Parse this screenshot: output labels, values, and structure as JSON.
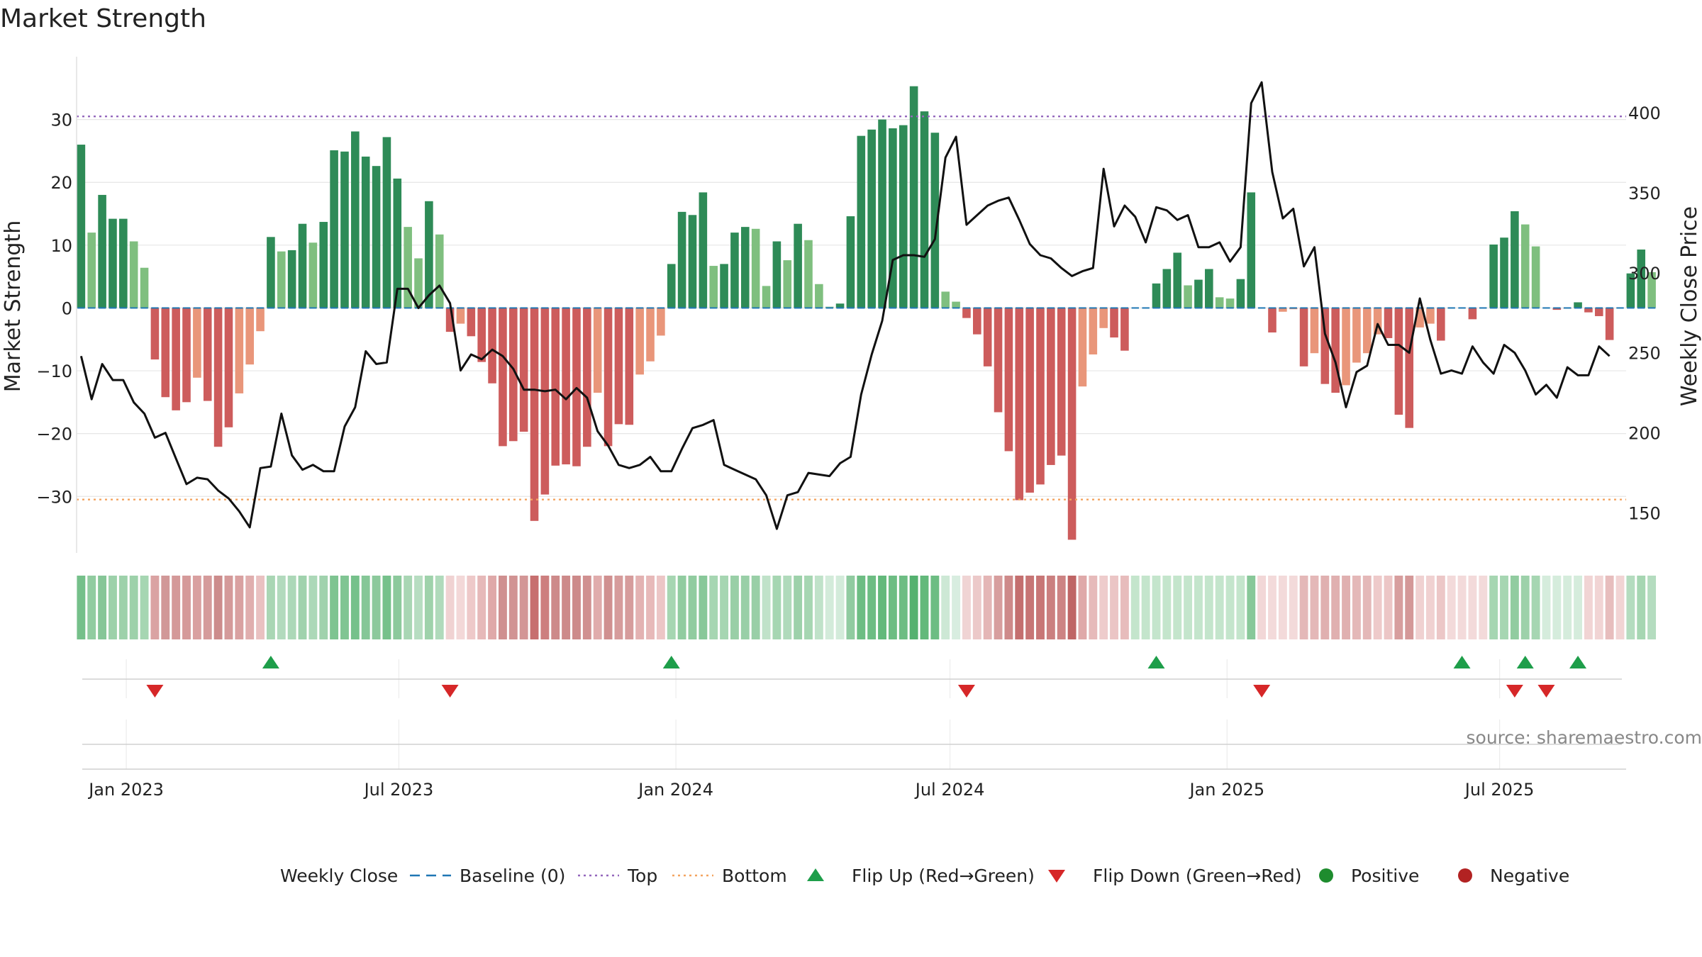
{
  "chart_data": {
    "type": "bar",
    "title": "Market Strength",
    "ylabel_left": "Market Strength",
    "ylabel_right": "Weekly Close Price",
    "ylim_left": [
      -39,
      40
    ],
    "ylim_right": [
      125,
      435
    ],
    "yticks_left": [
      30,
      20,
      10,
      0,
      -10,
      -20,
      -30
    ],
    "yticks_left_labels": [
      "30",
      "20",
      "10",
      "0",
      "−10",
      "−20",
      "−30"
    ],
    "yticks_right": [
      400,
      350,
      300,
      250,
      200,
      150
    ],
    "yticks_right_labels": [
      "400",
      "350",
      "300",
      "250",
      "200",
      "150"
    ],
    "x_start": "2022-12-02",
    "x_step_days": 7,
    "x_range": [
      "2022-11-29",
      "2025-09-23"
    ],
    "xticks": [
      {
        "date": "2023-01-01",
        "label": "Jan 2023"
      },
      {
        "date": "2023-07-01",
        "label": "Jul 2023"
      },
      {
        "date": "2024-01-01",
        "label": "Jan 2024"
      },
      {
        "date": "2024-07-01",
        "label": "Jul 2024"
      },
      {
        "date": "2025-01-01",
        "label": "Jan 2025"
      },
      {
        "date": "2025-07-01",
        "label": "Jul 2025"
      }
    ],
    "top_level": 30.5,
    "bottom_level": -30.5,
    "strength": [
      26,
      12,
      18,
      14.2,
      14.2,
      10.6,
      6.4,
      -8.2,
      -14.2,
      -16.3,
      -15,
      -11.1,
      -14.8,
      -22.1,
      -19,
      -13.6,
      -9,
      -3.7,
      11.3,
      9,
      9.2,
      13.4,
      10.4,
      13.7,
      25.1,
      24.9,
      28.1,
      24.1,
      22.6,
      27.2,
      20.6,
      12.9,
      7.9,
      17,
      11.7,
      -3.8,
      -2.5,
      -4.5,
      -8.6,
      -12,
      -22,
      -21.2,
      -19.7,
      -33.9,
      -29.7,
      -25.1,
      -24.9,
      -25.2,
      -22.1,
      -13.5,
      -22,
      -18.5,
      -18.6,
      -10.6,
      -8.5,
      -4.4,
      7,
      15.3,
      14.8,
      18.4,
      6.7,
      7,
      12,
      12.9,
      12.6,
      3.5,
      10.6,
      7.6,
      13.4,
      10.8,
      3.8,
      0.2,
      0.7,
      14.6,
      27.4,
      28.4,
      30,
      28.6,
      29.1,
      35.3,
      31.3,
      27.9,
      2.6,
      1,
      -1.6,
      -4.2,
      -9.3,
      -16.6,
      -22.8,
      -30.6,
      -29.4,
      -28.1,
      -25,
      -23.5,
      -36.9,
      -12.5,
      -7.4,
      -3.2,
      -4.7,
      -6.8,
      0,
      0,
      3.9,
      6.2,
      8.8,
      3.6,
      4.5,
      6.2,
      1.7,
      1.5,
      4.6,
      18.4,
      0,
      -3.9,
      -0.6,
      -0.2,
      -9.3,
      -7.2,
      -12.1,
      -13.5,
      -12.3,
      -8.7,
      -7.2,
      -4.2,
      -4.8,
      -17,
      -19.1,
      -3.1,
      -2.5,
      -5.2,
      0,
      0,
      -1.8,
      0,
      10.1,
      11.2,
      15.4,
      13.3,
      9.8,
      0,
      -0.3,
      -0.1,
      0.9,
      -0.7,
      -1.3,
      -5.1,
      0,
      5.5,
      9.3,
      5.7
    ],
    "close": [
      248,
      221,
      243,
      233,
      233,
      219,
      212,
      197,
      200,
      184,
      168,
      172,
      171,
      164,
      159,
      151,
      141,
      178,
      179,
      212,
      186,
      177,
      180,
      176,
      176,
      204,
      216,
      251,
      243,
      244,
      290,
      290,
      278,
      286,
      292,
      281,
      239,
      249,
      246,
      252,
      248,
      240,
      227,
      227,
      226,
      227,
      221,
      228,
      222,
      201,
      192,
      180,
      178,
      180,
      185,
      176,
      176,
      190,
      203,
      205,
      208,
      180,
      177,
      174,
      171,
      161,
      140,
      161,
      163,
      175,
      174,
      173,
      181,
      185,
      224,
      249,
      270,
      308,
      311,
      311,
      310,
      321,
      372,
      385,
      330,
      336,
      342,
      345,
      347,
      333,
      318,
      311,
      309,
      303,
      298,
      301,
      303,
      365,
      329,
      342,
      335,
      319,
      341,
      339,
      333,
      336,
      316,
      316,
      319,
      307,
      316,
      406,
      419,
      363,
      334,
      340,
      304,
      316,
      262,
      244,
      216,
      238,
      242,
      268,
      255,
      255,
      250,
      284,
      258,
      237,
      239,
      237,
      254,
      244,
      237,
      255,
      250,
      239,
      224,
      230,
      222,
      241,
      236,
      236,
      254,
      248
    ],
    "heat_colors": [
      "#75c08a",
      "#91cca0",
      "#86c697",
      "#9dd1aa",
      "#9dd1aa",
      "#9dd1aa",
      "#a6d6b2",
      "#daa3a3",
      "#d19898",
      "#d49999",
      "#d59a9a",
      "#d9a0a0",
      "#d59b9b",
      "#cc8c8c",
      "#d49a9a",
      "#d9a1a1",
      "#e0aeae",
      "#e9c1c1",
      "#a9d6b4",
      "#b2dabd",
      "#acd8b8",
      "#a0d2ad",
      "#acd8b8",
      "#a0d2ad",
      "#7ec491",
      "#80c593",
      "#76c18b",
      "#85c797",
      "#8cc99c",
      "#76c18b",
      "#8cc99c",
      "#a9d6b4",
      "#b7ddc1",
      "#9fd2ab",
      "#b0dabb",
      "#f0d2d2",
      "#f3d8d8",
      "#eec9c9",
      "#e6b9b9",
      "#dfa9a9",
      "#cf9090",
      "#d19393",
      "#d39696",
      "#c76f6f",
      "#cd7f7f",
      "#cd8a8a",
      "#cd8a8a",
      "#cd8a8a",
      "#d09090",
      "#e0acac",
      "#d09090",
      "#d69c9c",
      "#d69c9c",
      "#e3b2b2",
      "#e7b9b9",
      "#ecc6c6",
      "#a6d6b2",
      "#91cca0",
      "#91cca0",
      "#88c899",
      "#a6d6b2",
      "#a6d6b2",
      "#99cfa7",
      "#99cfa7",
      "#99cfa7",
      "#c0e2c9",
      "#a6d6b2",
      "#b0dabb",
      "#9dd1aa",
      "#a6d6b2",
      "#c0e2c9",
      "#d3ebda",
      "#d3ebda",
      "#90cba0",
      "#6dbd83",
      "#6dbd83",
      "#63b97b",
      "#6dbd83",
      "#6dbd83",
      "#54b16f",
      "#63b97b",
      "#6dbd83",
      "#cde8d5",
      "#d8ede0",
      "#f0d4d4",
      "#ecc9c9",
      "#e4b6b6",
      "#d79e9e",
      "#ce8a8a",
      "#c46f6f",
      "#c77575",
      "#c87676",
      "#cb7f7f",
      "#cd8383",
      "#bf6565",
      "#dfa9a9",
      "#e6baba",
      "#eecccc",
      "#ebc5c5",
      "#e7bcbc",
      "#c4e5cc",
      "#c4e5cc",
      "#c4e5cc",
      "#c4e5cc",
      "#c4e5cc",
      "#c4e5cc",
      "#c4e5cc",
      "#c4e5cc",
      "#c4e5cc",
      "#c4e5cc",
      "#c4e5cc",
      "#88c899",
      "#f2d7d7",
      "#f3dada",
      "#f3dada",
      "#f3dada",
      "#e4b8b8",
      "#e4b8b8",
      "#e0b0b0",
      "#e0b0b0",
      "#e0b0b0",
      "#e4b8b8",
      "#e4b8b8",
      "#eecaca",
      "#ecc6c6",
      "#d79e9e",
      "#d49898",
      "#f0d1d1",
      "#f0d1d1",
      "#ecc7c7",
      "#f3dada",
      "#f3dada",
      "#f3dada",
      "#f3dada",
      "#a6d6b2",
      "#a6d6b2",
      "#91cca0",
      "#9dd1aa",
      "#a6d6b2",
      "#d5ecdc",
      "#d5ecdc",
      "#d5ecdc",
      "#d5ecdc",
      "#f1d4d4",
      "#f1d4d4",
      "#e7bdbd",
      "#f1d4d4",
      "#b4dcbf",
      "#a6d6b2",
      "#b4dcbf"
    ],
    "flip_up_idx": [
      18,
      56,
      102,
      131,
      137,
      142
    ],
    "flip_down_idx": [
      7,
      35,
      84,
      112,
      136,
      139
    ],
    "colors": {
      "strong_green": "#2e8b57",
      "light_green": "#7fbf7f",
      "strong_red": "#cd5c5c",
      "light_red": "#e9967a",
      "line": "#111111",
      "baseline": "#1f77b4",
      "top": "#9467bd",
      "bottom": "#f4a460",
      "flip_up": "#1e9e4a",
      "flip_down": "#d62728",
      "positive": "#1e8c2e",
      "negative": "#b22222"
    },
    "legend": [
      {
        "key": "close",
        "label": "Weekly Close",
        "marker": "line-solid"
      },
      {
        "key": "baseline",
        "label": "Baseline (0)",
        "marker": "line-dashed"
      },
      {
        "key": "top",
        "label": "Top",
        "marker": "line-dotted"
      },
      {
        "key": "bottom",
        "label": "Bottom",
        "marker": "line-dotted"
      },
      {
        "key": "flip_up",
        "label": "Flip Up (Red→Green)",
        "marker": "triangle-up"
      },
      {
        "key": "flip_down",
        "label": "Flip Down (Green→Red)",
        "marker": "triangle-down"
      },
      {
        "key": "positive",
        "label": "Positive",
        "marker": "circle"
      },
      {
        "key": "negative",
        "label": "Negative",
        "marker": "circle"
      }
    ],
    "source": "source: sharemaestro.com"
  }
}
